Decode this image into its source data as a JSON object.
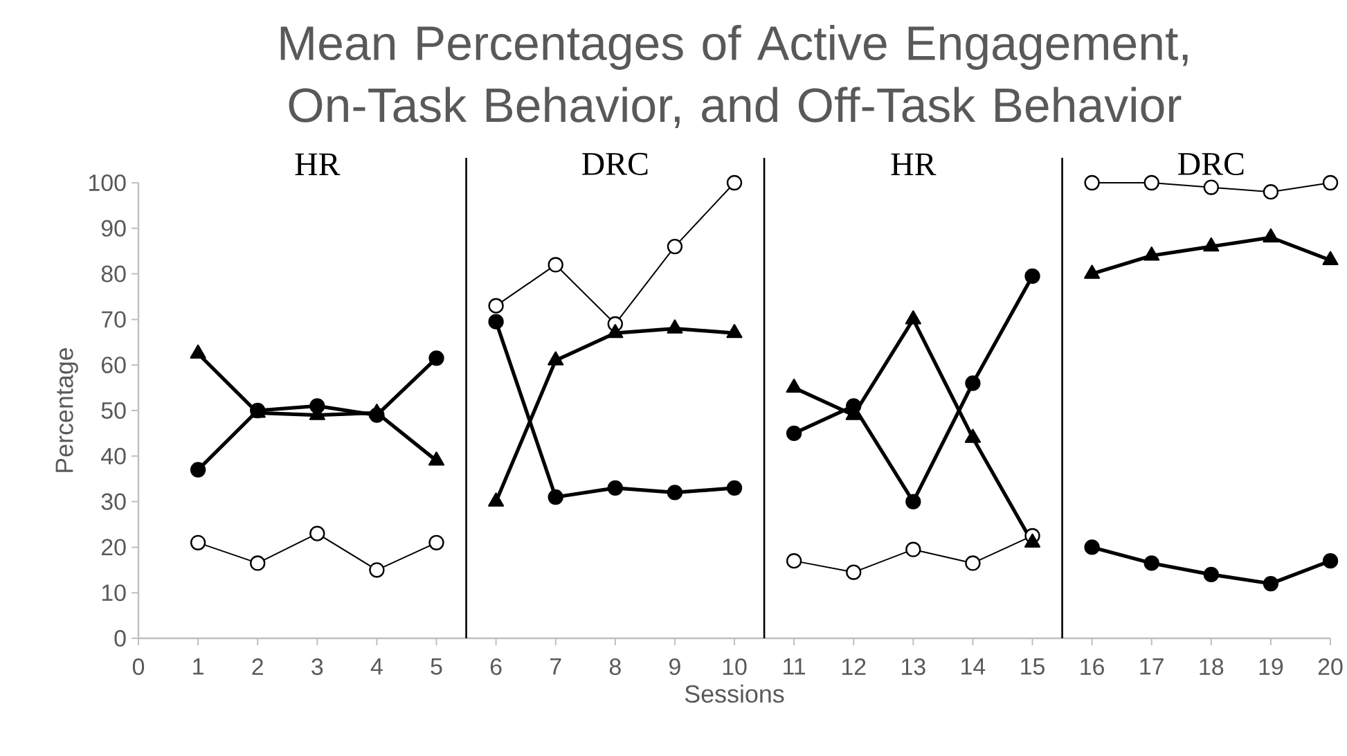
{
  "chart_data": {
    "type": "line",
    "title": "Mean Percentages of Active Engagement, On-Task Behavior, and Off-Task Behavior",
    "xlabel": "Sessions",
    "ylabel": "Percentage",
    "x": [
      1,
      2,
      3,
      4,
      5,
      null,
      6,
      7,
      8,
      9,
      10,
      null,
      11,
      12,
      13,
      14,
      15,
      null,
      16,
      17,
      18,
      19,
      20
    ],
    "series": [
      {
        "color": "#000000",
        "marker": "circle",
        "values": [
          37,
          50,
          51,
          49,
          61.5,
          null,
          69.5,
          31,
          33,
          32,
          33,
          null,
          45,
          51,
          30,
          56,
          79.5,
          null,
          20,
          16.5,
          14,
          12,
          17
        ]
      },
      {
        "color": "#000000",
        "marker": "triangle",
        "values": [
          62.5,
          49.5,
          49,
          49.5,
          39,
          null,
          30,
          61,
          67,
          68,
          67,
          null,
          55,
          49,
          70,
          44,
          21,
          null,
          80,
          84,
          86,
          88,
          83
        ]
      },
      {
        "color": "#000000",
        "marker": "circle",
        "values": [
          21,
          16.5,
          23,
          15,
          21,
          null,
          73,
          82,
          69,
          86,
          100,
          null,
          17,
          14.5,
          19.5,
          16.5,
          22.5,
          null,
          100,
          100,
          99,
          98,
          100
        ]
      }
    ],
    "xlim": [
      0,
      20
    ],
    "xticks": [
      0,
      1,
      2,
      3,
      4,
      5,
      6,
      7,
      8,
      9,
      10,
      11,
      12,
      13,
      14,
      15,
      16,
      17,
      18,
      19,
      20
    ],
    "ylim": [
      0,
      100
    ],
    "yticks": [
      0,
      10,
      20,
      30,
      40,
      50,
      60,
      70,
      80,
      90,
      100
    ],
    "grid": false,
    "line_style": "solid",
    "ref_lines": [
      {
        "axis": "x",
        "value": 5.5,
        "color": "#000000"
      },
      {
        "axis": "x",
        "value": 10.5,
        "color": "#000000"
      },
      {
        "axis": "x",
        "value": 15.5,
        "color": "#000000"
      }
    ],
    "annotations": [
      "HR",
      "DRC",
      "HR",
      "DRC"
    ]
  }
}
